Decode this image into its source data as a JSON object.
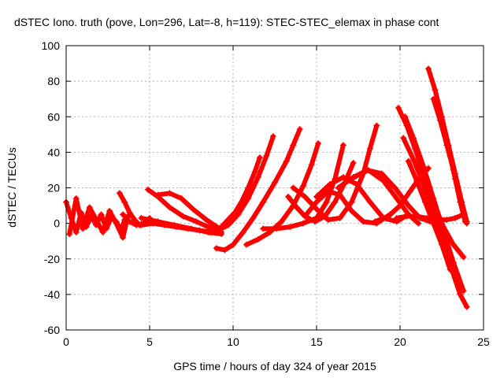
{
  "chart_data": {
    "type": "scatter",
    "title": "dSTEC Iono. truth (pove, Lon=296, Lat=-8, h=119): STEC-STEC_elemax in phase cont",
    "xlabel": "GPS time / hours of day 324 of year 2015",
    "ylabel": "dSTEC  / TECUs",
    "xlim": [
      0,
      25
    ],
    "ylim": [
      -60,
      100
    ],
    "xticks": [
      0,
      5,
      10,
      15,
      20,
      25
    ],
    "yticks": [
      -60,
      -40,
      -20,
      0,
      20,
      40,
      60,
      80,
      100
    ],
    "grid": true,
    "legend": "none",
    "marker": "+",
    "color": "#ff0000",
    "series": [
      {
        "x": [
          0.0,
          0.3,
          0.6,
          0.9,
          1.2,
          1.5,
          1.8,
          2.1,
          2.4,
          2.7,
          3.0,
          3.3,
          3.5
        ],
        "y": [
          12,
          3,
          -5,
          6,
          -2,
          4,
          -1,
          5,
          -3,
          3,
          1,
          -4,
          2
        ]
      },
      {
        "x": [
          0.2,
          0.6,
          1.0,
          1.4,
          1.8,
          2.2,
          2.6,
          3.0,
          3.4,
          3.7
        ],
        "y": [
          -6,
          14,
          -3,
          9,
          2,
          -5,
          7,
          0,
          -8,
          4
        ]
      },
      {
        "x": [
          3.2,
          3.5,
          3.8,
          4.1,
          4.4,
          4.7,
          5.0
        ],
        "y": [
          17,
          12,
          6,
          2,
          -1,
          0,
          3
        ]
      },
      {
        "x": [
          3.4,
          3.8,
          4.2,
          4.6,
          5.0,
          5.4
        ],
        "y": [
          5,
          1,
          -1,
          0,
          2,
          1
        ]
      },
      {
        "x": [
          4.9,
          5.5,
          6.2,
          7.0,
          7.8,
          8.5,
          9.0
        ],
        "y": [
          19,
          15,
          9,
          4,
          1,
          -2,
          -3
        ]
      },
      {
        "x": [
          5.5,
          6.2,
          6.9,
          7.6,
          8.4,
          9.2
        ],
        "y": [
          16,
          17,
          14,
          8,
          2,
          -3
        ]
      },
      {
        "x": [
          4.5,
          5.5,
          6.5,
          7.5,
          8.5,
          9.3
        ],
        "y": [
          3,
          1,
          -1,
          -3,
          -5,
          -6
        ]
      },
      {
        "x": [
          4.5,
          5.2,
          5.9,
          6.6,
          7.3,
          8.0,
          8.7,
          9.3
        ],
        "y": [
          -1,
          0,
          -1,
          -2,
          -3,
          -4,
          -5,
          -5
        ]
      },
      {
        "x": [
          9.3,
          9.7,
          10.1,
          10.5,
          10.9,
          11.3,
          11.6
        ],
        "y": [
          -2,
          2,
          6,
          12,
          20,
          29,
          37
        ]
      },
      {
        "x": [
          8.6,
          9.1,
          9.7,
          10.3,
          10.9,
          11.5,
          12.0,
          12.4
        ],
        "y": [
          -5,
          -4,
          -1,
          5,
          14,
          26,
          38,
          49
        ]
      },
      {
        "x": [
          9.0,
          9.5,
          10.0,
          10.6,
          11.2,
          11.8,
          12.5,
          13.2,
          13.6,
          14.0
        ],
        "y": [
          -14,
          -15,
          -12,
          -5,
          3,
          12,
          23,
          35,
          44,
          53
        ]
      },
      {
        "x": [
          10.8,
          11.5,
          12.2,
          12.9,
          13.6,
          14.2,
          14.7,
          15.1
        ],
        "y": [
          -12,
          -9,
          -5,
          1,
          10,
          21,
          33,
          45
        ]
      },
      {
        "x": [
          11.8,
          12.6,
          13.4,
          14.2,
          15.0,
          15.6,
          16.1,
          16.6
        ],
        "y": [
          -3,
          -3,
          -2,
          0,
          3,
          12,
          25,
          44
        ]
      },
      {
        "x": [
          13.3,
          13.8,
          14.3,
          14.9,
          15.5,
          16.1,
          16.7,
          17.2
        ],
        "y": [
          15,
          9,
          4,
          1,
          4,
          12,
          23,
          34
        ]
      },
      {
        "x": [
          13.6,
          14.3,
          15.0,
          15.7,
          16.4,
          17.1,
          17.8,
          18.2,
          18.6
        ],
        "y": [
          20,
          15,
          8,
          2,
          3,
          12,
          28,
          42,
          55
        ]
      },
      {
        "x": [
          14.3,
          15.0,
          15.7,
          16.4,
          17.1,
          17.8,
          18.6,
          19.4
        ],
        "y": [
          4,
          12,
          18,
          16,
          7,
          1,
          0,
          5
        ]
      },
      {
        "x": [
          15.0,
          15.8,
          16.6,
          17.4,
          18.2,
          19.0,
          19.8,
          20.5
        ],
        "y": [
          15,
          22,
          26,
          22,
          12,
          3,
          1,
          5
        ]
      },
      {
        "x": [
          16.3,
          17.2,
          18.1,
          19.0,
          19.8,
          20.5,
          21.1
        ],
        "y": [
          20,
          26,
          30,
          24,
          14,
          5,
          0
        ]
      },
      {
        "x": [
          17.1,
          18.0,
          18.9,
          19.7,
          20.5,
          21.2,
          21.8
        ],
        "y": [
          25,
          30,
          28,
          20,
          10,
          3,
          1
        ]
      },
      {
        "x": [
          18.5,
          19.3,
          20.0,
          20.6,
          21.2,
          21.7
        ],
        "y": [
          1,
          4,
          10,
          18,
          26,
          31
        ]
      },
      {
        "x": [
          19.8,
          20.4,
          21.0,
          21.6,
          22.2,
          22.8,
          23.3,
          23.8
        ],
        "y": [
          3,
          4,
          4,
          3,
          2,
          2,
          3,
          5
        ]
      },
      {
        "x": [
          19.9,
          20.4,
          20.9,
          21.4,
          22.0,
          22.6,
          23.2,
          23.8
        ],
        "y": [
          65,
          55,
          42,
          28,
          12,
          -2,
          -12,
          -19
        ]
      },
      {
        "x": [
          20.3,
          20.8,
          21.4,
          22.0,
          22.6,
          23.2,
          23.8
        ],
        "y": [
          60,
          48,
          32,
          14,
          -4,
          -22,
          -38
        ]
      },
      {
        "x": [
          20.2,
          20.8,
          21.4,
          22.0,
          22.6,
          23.1,
          23.6,
          24.0
        ],
        "y": [
          48,
          36,
          22,
          6,
          -10,
          -26,
          -40,
          -47
        ]
      },
      {
        "x": [
          20.5,
          21.0,
          21.5,
          22.0,
          22.5,
          23.0
        ],
        "y": [
          35,
          24,
          12,
          0,
          -12,
          -26
        ]
      },
      {
        "x": [
          21.7,
          22.1,
          22.5,
          22.9,
          23.3,
          23.7,
          24.0
        ],
        "y": [
          87,
          75,
          60,
          44,
          28,
          12,
          1
        ]
      },
      {
        "x": [
          22.0,
          22.4,
          22.8,
          23.2,
          23.6,
          24.0
        ],
        "y": [
          70,
          58,
          44,
          30,
          14,
          0
        ]
      },
      {
        "x": [
          23.0,
          23.3,
          23.6,
          23.9
        ],
        "y": [
          38,
          25,
          12,
          1
        ]
      }
    ]
  }
}
